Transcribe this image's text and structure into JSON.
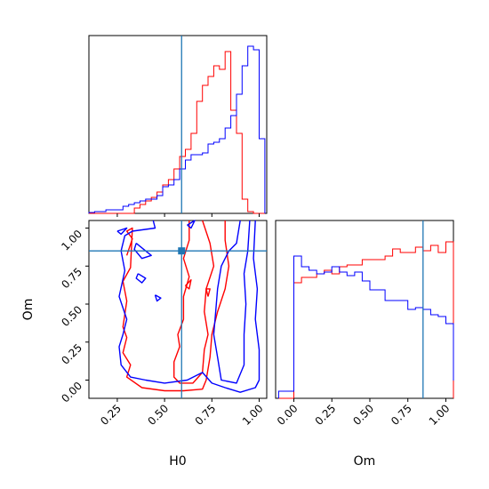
{
  "colors": {
    "series_a": "#ff0000",
    "series_b": "#0000ff",
    "truth": "#1f77b4",
    "axes": "#000000"
  },
  "chart_data": {
    "type": "corner",
    "parameters": [
      "H0",
      "Om"
    ],
    "truth": {
      "H0": 0.59,
      "Om": 0.85
    },
    "h0_bins": [
      0.1,
      0.13,
      0.16,
      0.19,
      0.22,
      0.25,
      0.28,
      0.31,
      0.34,
      0.37,
      0.4,
      0.43,
      0.46,
      0.49,
      0.52,
      0.55,
      0.58,
      0.61,
      0.64,
      0.67,
      0.7,
      0.73,
      0.76,
      0.79,
      0.82,
      0.85,
      0.88,
      0.91,
      0.94,
      0.97,
      1.0,
      1.03
    ],
    "h0_hist_red": [
      0,
      0,
      0,
      0,
      0,
      0,
      0,
      0,
      0.03,
      0.05,
      0.07,
      0.09,
      0.12,
      0.16,
      0.19,
      0.25,
      0.32,
      0.36,
      0.45,
      0.63,
      0.72,
      0.77,
      0.83,
      0.81,
      0.91,
      0.58,
      0.45,
      0.08,
      0.01,
      0,
      0
    ],
    "h0_hist_blue": [
      0.005,
      0.01,
      0.01,
      0.02,
      0.02,
      0.02,
      0.04,
      0.05,
      0.06,
      0.07,
      0.08,
      0.08,
      0.1,
      0.15,
      0.16,
      0.19,
      0.25,
      0.3,
      0.33,
      0.33,
      0.34,
      0.39,
      0.4,
      0.42,
      0.48,
      0.55,
      0.67,
      0.83,
      0.94,
      0.92,
      0.42
    ],
    "om_bins": [
      -0.1,
      -0.05,
      0.0,
      0.05,
      0.1,
      0.15,
      0.2,
      0.25,
      0.3,
      0.35,
      0.4,
      0.45,
      0.5,
      0.55,
      0.6,
      0.65,
      0.7,
      0.75,
      0.8,
      0.85,
      0.9,
      0.95,
      1.0,
      1.05
    ],
    "om_hist_red": [
      0,
      0,
      0.65,
      0.68,
      0.68,
      0.7,
      0.72,
      0.7,
      0.74,
      0.75,
      0.75,
      0.78,
      0.78,
      0.78,
      0.8,
      0.84,
      0.82,
      0.82,
      0.85,
      0.83,
      0.86,
      0.82,
      0.88,
      0
    ],
    "om_hist_blue": [
      0.04,
      0.04,
      0.8,
      0.74,
      0.72,
      0.7,
      0.71,
      0.74,
      0.71,
      0.69,
      0.71,
      0.66,
      0.61,
      0.61,
      0.55,
      0.55,
      0.55,
      0.5,
      0.51,
      0.5,
      0.47,
      0.46,
      0.42,
      0.1
    ],
    "h0_ticks": [
      0.25,
      0.5,
      0.75,
      1.0
    ],
    "h0_tick_labels": [
      "0.25",
      "0.50",
      "0.75",
      "1.00"
    ],
    "om_ticks": [
      0.0,
      0.25,
      0.5,
      0.75,
      1.0
    ],
    "om_tick_labels": [
      "0.00",
      "0.25",
      "0.50",
      "0.75",
      "1.00"
    ],
    "h0_range": [
      0.1,
      1.04
    ],
    "om_range": [
      -0.12,
      1.05
    ],
    "xlabel_left": "H0",
    "xlabel_right": "Om",
    "ylabel": "Om",
    "contours_red": [
      [
        [
          0.3,
          0.82
        ],
        [
          0.33,
          0.93
        ],
        [
          0.3,
          0.98
        ],
        [
          0.33,
          1.0
        ],
        [
          0.32,
          0.74
        ],
        [
          0.28,
          0.65
        ],
        [
          0.3,
          0.52
        ],
        [
          0.28,
          0.35
        ],
        [
          0.3,
          0.28
        ],
        [
          0.28,
          0.18
        ],
        [
          0.32,
          0.1
        ],
        [
          0.3,
          0.02
        ],
        [
          0.38,
          -0.05
        ],
        [
          0.5,
          -0.07
        ],
        [
          0.6,
          -0.07
        ],
        [
          0.7,
          -0.06
        ],
        [
          0.72,
          0.0
        ],
        [
          0.74,
          0.15
        ],
        [
          0.75,
          0.3
        ],
        [
          0.78,
          0.45
        ],
        [
          0.82,
          0.6
        ],
        [
          0.84,
          0.75
        ],
        [
          0.82,
          0.92
        ],
        [
          0.82,
          1.05
        ]
      ],
      [
        [
          0.7,
          1.05
        ],
        [
          0.74,
          0.9
        ],
        [
          0.76,
          0.75
        ],
        [
          0.72,
          0.6
        ],
        [
          0.71,
          0.45
        ],
        [
          0.73,
          0.3
        ],
        [
          0.71,
          0.2
        ],
        [
          0.7,
          0.05
        ],
        [
          0.65,
          -0.02
        ],
        [
          0.58,
          -0.02
        ],
        [
          0.55,
          0.02
        ],
        [
          0.55,
          0.12
        ],
        [
          0.58,
          0.22
        ],
        [
          0.57,
          0.3
        ],
        [
          0.6,
          0.4
        ],
        [
          0.6,
          0.55
        ],
        [
          0.63,
          0.68
        ],
        [
          0.6,
          0.8
        ],
        [
          0.63,
          0.92
        ],
        [
          0.63,
          1.05
        ]
      ],
      [
        [
          0.61,
          0.62
        ],
        [
          0.64,
          0.66
        ],
        [
          0.63,
          0.6
        ],
        [
          0.61,
          0.62
        ]
      ],
      [
        [
          0.73,
          0.55
        ],
        [
          0.74,
          0.6
        ],
        [
          0.72,
          0.6
        ],
        [
          0.73,
          0.55
        ]
      ]
    ],
    "contours_blue": [
      [
        [
          0.98,
          1.05
        ],
        [
          0.97,
          0.8
        ],
        [
          0.99,
          0.6
        ],
        [
          0.98,
          0.4
        ],
        [
          1.0,
          0.2
        ],
        [
          1.0,
          0.0
        ],
        [
          0.98,
          -0.05
        ],
        [
          0.9,
          -0.08
        ],
        [
          0.82,
          -0.05
        ],
        [
          0.75,
          -0.02
        ],
        [
          0.7,
          0.05
        ],
        [
          0.62,
          0.0
        ],
        [
          0.5,
          -0.02
        ],
        [
          0.4,
          0.0
        ],
        [
          0.32,
          0.02
        ],
        [
          0.27,
          0.1
        ],
        [
          0.26,
          0.22
        ],
        [
          0.28,
          0.3
        ],
        [
          0.3,
          0.4
        ],
        [
          0.26,
          0.55
        ],
        [
          0.29,
          0.72
        ],
        [
          0.27,
          0.85
        ],
        [
          0.29,
          0.95
        ],
        [
          0.33,
          0.98
        ],
        [
          0.45,
          1.0
        ],
        [
          0.44,
          1.05
        ]
      ],
      [
        [
          0.9,
          1.05
        ],
        [
          0.88,
          0.9
        ],
        [
          0.84,
          0.85
        ],
        [
          0.8,
          0.75
        ],
        [
          0.78,
          0.6
        ],
        [
          0.77,
          0.45
        ],
        [
          0.76,
          0.3
        ],
        [
          0.78,
          0.15
        ],
        [
          0.8,
          0.0
        ],
        [
          0.88,
          -0.02
        ],
        [
          0.92,
          0.1
        ],
        [
          0.92,
          0.3
        ],
        [
          0.93,
          0.5
        ],
        [
          0.92,
          0.7
        ],
        [
          0.94,
          0.85
        ],
        [
          0.95,
          1.05
        ]
      ],
      [
        [
          0.35,
          0.9
        ],
        [
          0.4,
          0.85
        ],
        [
          0.43,
          0.82
        ],
        [
          0.38,
          0.8
        ],
        [
          0.34,
          0.86
        ],
        [
          0.35,
          0.9
        ]
      ],
      [
        [
          0.25,
          0.98
        ],
        [
          0.3,
          1.0
        ],
        [
          0.27,
          0.96
        ],
        [
          0.25,
          0.98
        ]
      ],
      [
        [
          0.36,
          0.7
        ],
        [
          0.4,
          0.67
        ],
        [
          0.38,
          0.64
        ],
        [
          0.35,
          0.67
        ],
        [
          0.36,
          0.7
        ]
      ],
      [
        [
          0.45,
          0.56
        ],
        [
          0.48,
          0.54
        ],
        [
          0.46,
          0.52
        ],
        [
          0.45,
          0.56
        ]
      ],
      [
        [
          0.62,
          1.02
        ],
        [
          0.66,
          1.05
        ],
        [
          0.64,
          1.0
        ],
        [
          0.62,
          1.02
        ]
      ]
    ]
  }
}
